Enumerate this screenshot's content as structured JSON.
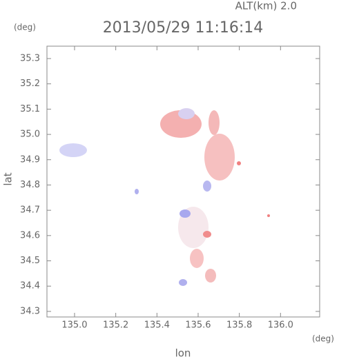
{
  "chart_data": {
    "type": "scatter",
    "title": "2013/05/29 11:16:14",
    "subtitle": "ALT(km) 2.0",
    "x_label": "lon",
    "y_label": "lat",
    "x_unit": "(deg)",
    "y_unit": "(deg)",
    "xlim": [
      134.866,
      136.19
    ],
    "ylim": [
      34.278,
      35.349
    ],
    "xticks": [
      {
        "value": 135,
        "label": "135.0"
      },
      135.2,
      135.4,
      135.6,
      135.8,
      {
        "value": 136,
        "label": "136.0"
      }
    ],
    "yticks": [
      34.3,
      34.4,
      34.5,
      34.6,
      34.7,
      34.8,
      34.9,
      {
        "value": 35,
        "label": "35.0"
      },
      35.1,
      35.2,
      35.3
    ]
  }
}
